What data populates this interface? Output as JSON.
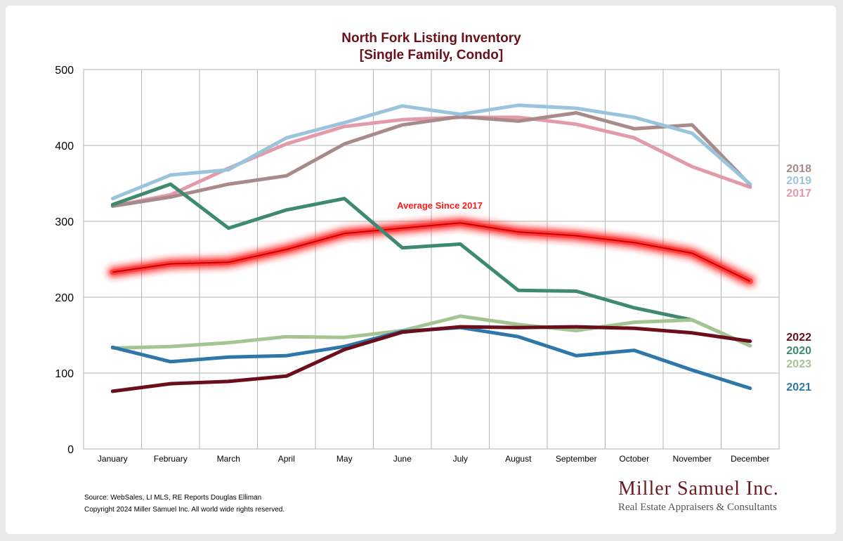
{
  "chart_data": {
    "type": "line",
    "title": [
      "North Fork Listing Inventory",
      "[Single Family, Condo]"
    ],
    "xlabel": "",
    "ylabel": "",
    "ylim": [
      0,
      500
    ],
    "yticks": [
      0,
      100,
      200,
      300,
      400,
      500
    ],
    "grid": true,
    "categories": [
      "January",
      "February",
      "March",
      "April",
      "May",
      "June",
      "July",
      "August",
      "September",
      "October",
      "November",
      "December"
    ],
    "series": [
      {
        "name": "2017",
        "color": "#e39aab",
        "values": [
          320,
          335,
          370,
          402,
          425,
          434,
          437,
          437,
          428,
          410,
          372,
          345
        ]
      },
      {
        "name": "2018",
        "color": "#a88a8a",
        "values": [
          320,
          332,
          349,
          360,
          402,
          427,
          438,
          432,
          443,
          422,
          427,
          348
        ]
      },
      {
        "name": "2019",
        "color": "#9ac4dc",
        "values": [
          330,
          361,
          368,
          410,
          430,
          452,
          441,
          453,
          449,
          437,
          416,
          349
        ]
      },
      {
        "name": "2020",
        "color": "#3d8a70",
        "values": [
          322,
          349,
          291,
          315,
          330,
          265,
          270,
          209,
          208,
          186,
          170,
          136
        ]
      },
      {
        "name": "2021",
        "color": "#2e77a8",
        "values": [
          134,
          115,
          121,
          123,
          135,
          155,
          160,
          148,
          123,
          130,
          104,
          80
        ]
      },
      {
        "name": "2022",
        "color": "#6b0e1c",
        "values": [
          76,
          86,
          89,
          96,
          131,
          154,
          161,
          160,
          161,
          159,
          153,
          142
        ]
      },
      {
        "name": "2023",
        "color": "#a5c494",
        "values": [
          133,
          135,
          140,
          148,
          147,
          156,
          175,
          164,
          156,
          167,
          170,
          136
        ]
      },
      {
        "name": "Average  Since 2017",
        "color": "#c40000",
        "highlight": true,
        "values": [
          233,
          244,
          246,
          263,
          284,
          291,
          298,
          286,
          281,
          272,
          258,
          221
        ]
      }
    ],
    "end_labels": [
      {
        "text": "2018",
        "color": "#a88a8a"
      },
      {
        "text": "2019",
        "color": "#9ac4dc"
      },
      {
        "text": "2017",
        "color": "#e39aab"
      },
      {
        "text": "2022",
        "color": "#6b0e1c"
      },
      {
        "text": "2020",
        "color": "#3d8a70"
      },
      {
        "text": "2023",
        "color": "#a5c494"
      },
      {
        "text": "2021",
        "color": "#2e77a8"
      }
    ],
    "annotation": "Average  Since 2017"
  },
  "footer": {
    "source": "Source: WebSales, LI MLS, RE Reports Douglas Elliman",
    "copyright": "Copyright 2024 Miller Samuel Inc.  All world wide rights reserved."
  },
  "brand": {
    "name": "Miller Samuel Inc.",
    "tagline": "Real Estate Appraisers & Consultants"
  }
}
